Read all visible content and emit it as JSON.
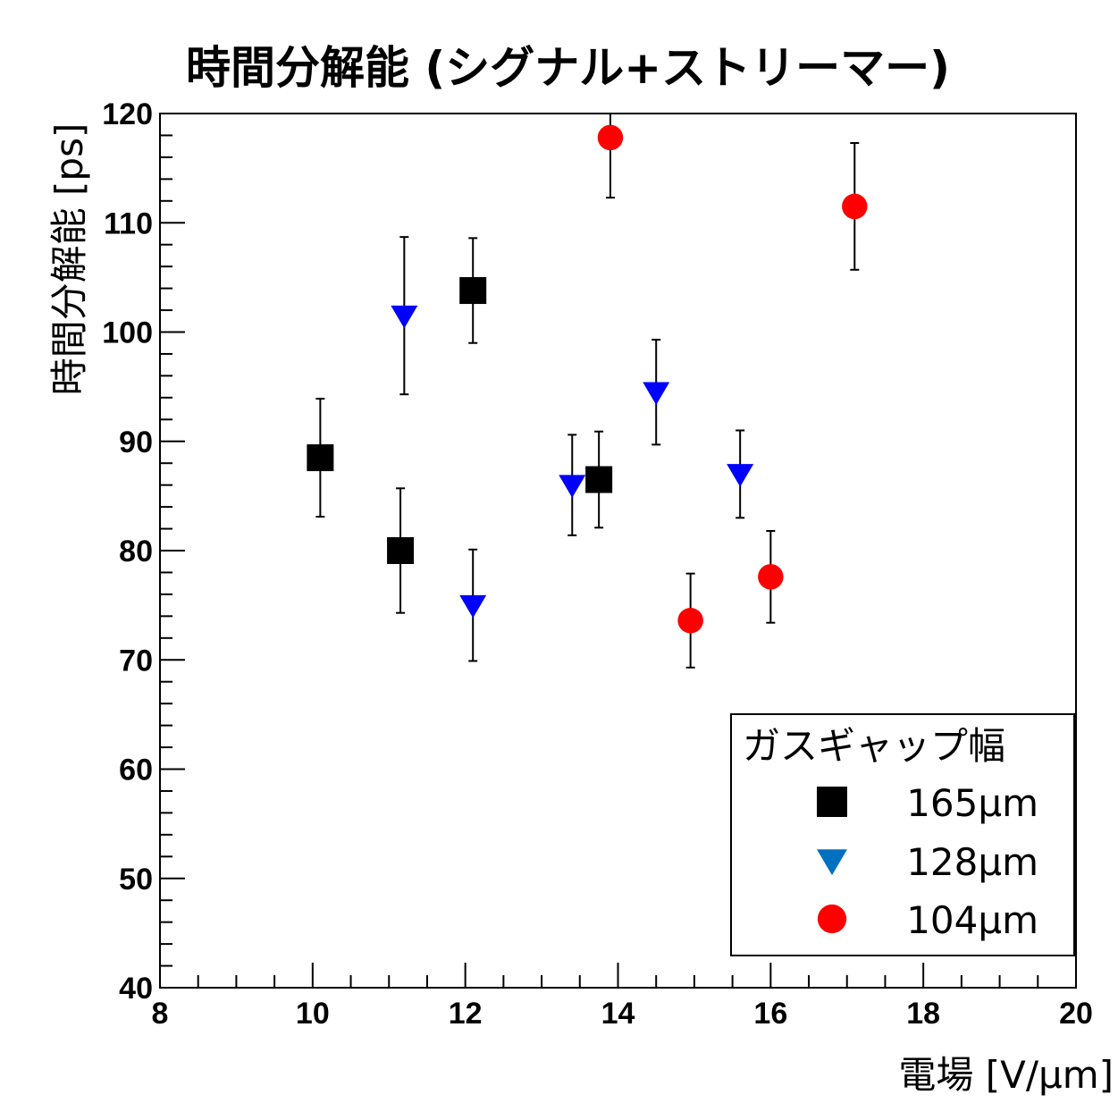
{
  "chart_data": {
    "type": "scatter",
    "title": "時間分解能 (シグナル+ストリーマー)",
    "xlabel": "電場 [V/μm]",
    "ylabel": "時間分解能 [ps]",
    "xlim": [
      8,
      20
    ],
    "ylim": [
      40,
      120
    ],
    "x_ticks": [
      "8",
      "10",
      "12",
      "14",
      "16",
      "18",
      "20"
    ],
    "y_ticks": [
      "40",
      "50",
      "60",
      "70",
      "80",
      "90",
      "100",
      "110",
      "120"
    ],
    "legend": {
      "title": "ガスギャップ幅",
      "position": "bottom-right"
    },
    "series": [
      {
        "name": "165μm",
        "marker": "square",
        "color": "#000000",
        "points": [
          {
            "x": 10.1,
            "y": 88.5,
            "err": 5.4
          },
          {
            "x": 11.15,
            "y": 80.0,
            "err": 5.7
          },
          {
            "x": 12.1,
            "y": 103.8,
            "err": 4.8
          },
          {
            "x": 13.75,
            "y": 86.5,
            "err": 4.4
          }
        ]
      },
      {
        "name": "128μm",
        "marker": "triangle-down",
        "color": "#0000ff",
        "legend_color": "#0070c0",
        "points": [
          {
            "x": 11.2,
            "y": 101.5,
            "err": 7.2
          },
          {
            "x": 12.1,
            "y": 75.0,
            "err": 5.1
          },
          {
            "x": 13.4,
            "y": 86.0,
            "err": 4.6
          },
          {
            "x": 14.5,
            "y": 94.5,
            "err": 4.8
          },
          {
            "x": 15.6,
            "y": 87.0,
            "err": 4.0
          }
        ]
      },
      {
        "name": "104μm",
        "marker": "circle",
        "color": "#ff0000",
        "points": [
          {
            "x": 13.9,
            "y": 117.8,
            "err": 5.5
          },
          {
            "x": 14.95,
            "y": 73.6,
            "err": 4.3
          },
          {
            "x": 16.0,
            "y": 77.6,
            "err": 4.2
          },
          {
            "x": 17.1,
            "y": 111.5,
            "err": 5.8
          }
        ]
      }
    ]
  }
}
